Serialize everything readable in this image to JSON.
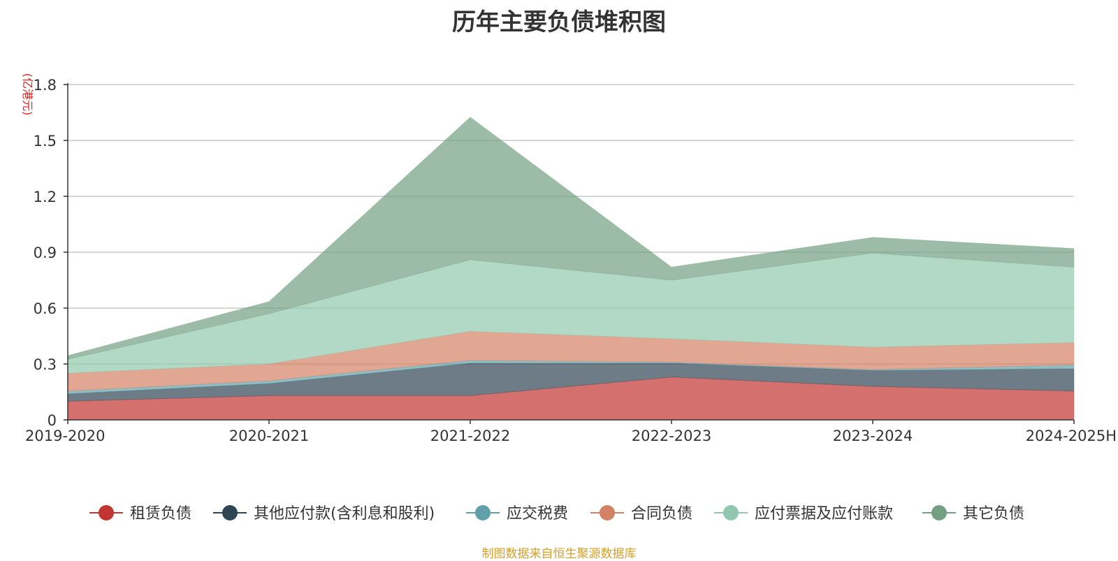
{
  "chart_data": {
    "type": "area",
    "stacked": true,
    "title": "历年主要负债堆积图",
    "unit_label": "(亿港元)",
    "categories": [
      "2019-2020",
      "2020-2021",
      "2021-2022",
      "2022-2023",
      "2023-2024",
      "2024-2025H"
    ],
    "ylim": [
      0,
      1.8
    ],
    "yticks": [
      "0",
      "0.3",
      "0.6",
      "0.9",
      "1.2",
      "1.5",
      "1.8"
    ],
    "grid": true,
    "legend_position": "bottom",
    "series": [
      {
        "name": "租赁负债",
        "color": "#c23531",
        "values": [
          0.1,
          0.13,
          0.13,
          0.23,
          0.18,
          0.155
        ]
      },
      {
        "name": "其他应付款(含利息和股利)",
        "color": "#2f4554",
        "values": [
          0.04,
          0.065,
          0.175,
          0.075,
          0.085,
          0.12
        ]
      },
      {
        "name": "应交税费",
        "color": "#61a0a8",
        "values": [
          0.015,
          0.015,
          0.015,
          0.005,
          0.005,
          0.02
        ]
      },
      {
        "name": "合同负债",
        "color": "#d48265",
        "values": [
          0.095,
          0.09,
          0.155,
          0.125,
          0.12,
          0.12
        ]
      },
      {
        "name": "应付票据及应付账款",
        "color": "#91c7ae",
        "values": [
          0.075,
          0.27,
          0.385,
          0.315,
          0.505,
          0.405
        ]
      },
      {
        "name": "其它负债",
        "color": "#749f83",
        "values": [
          0.02,
          0.065,
          0.765,
          0.07,
          0.085,
          0.1
        ]
      }
    ]
  },
  "footer": {
    "note": "制图数据来自恒生聚源数据库"
  }
}
